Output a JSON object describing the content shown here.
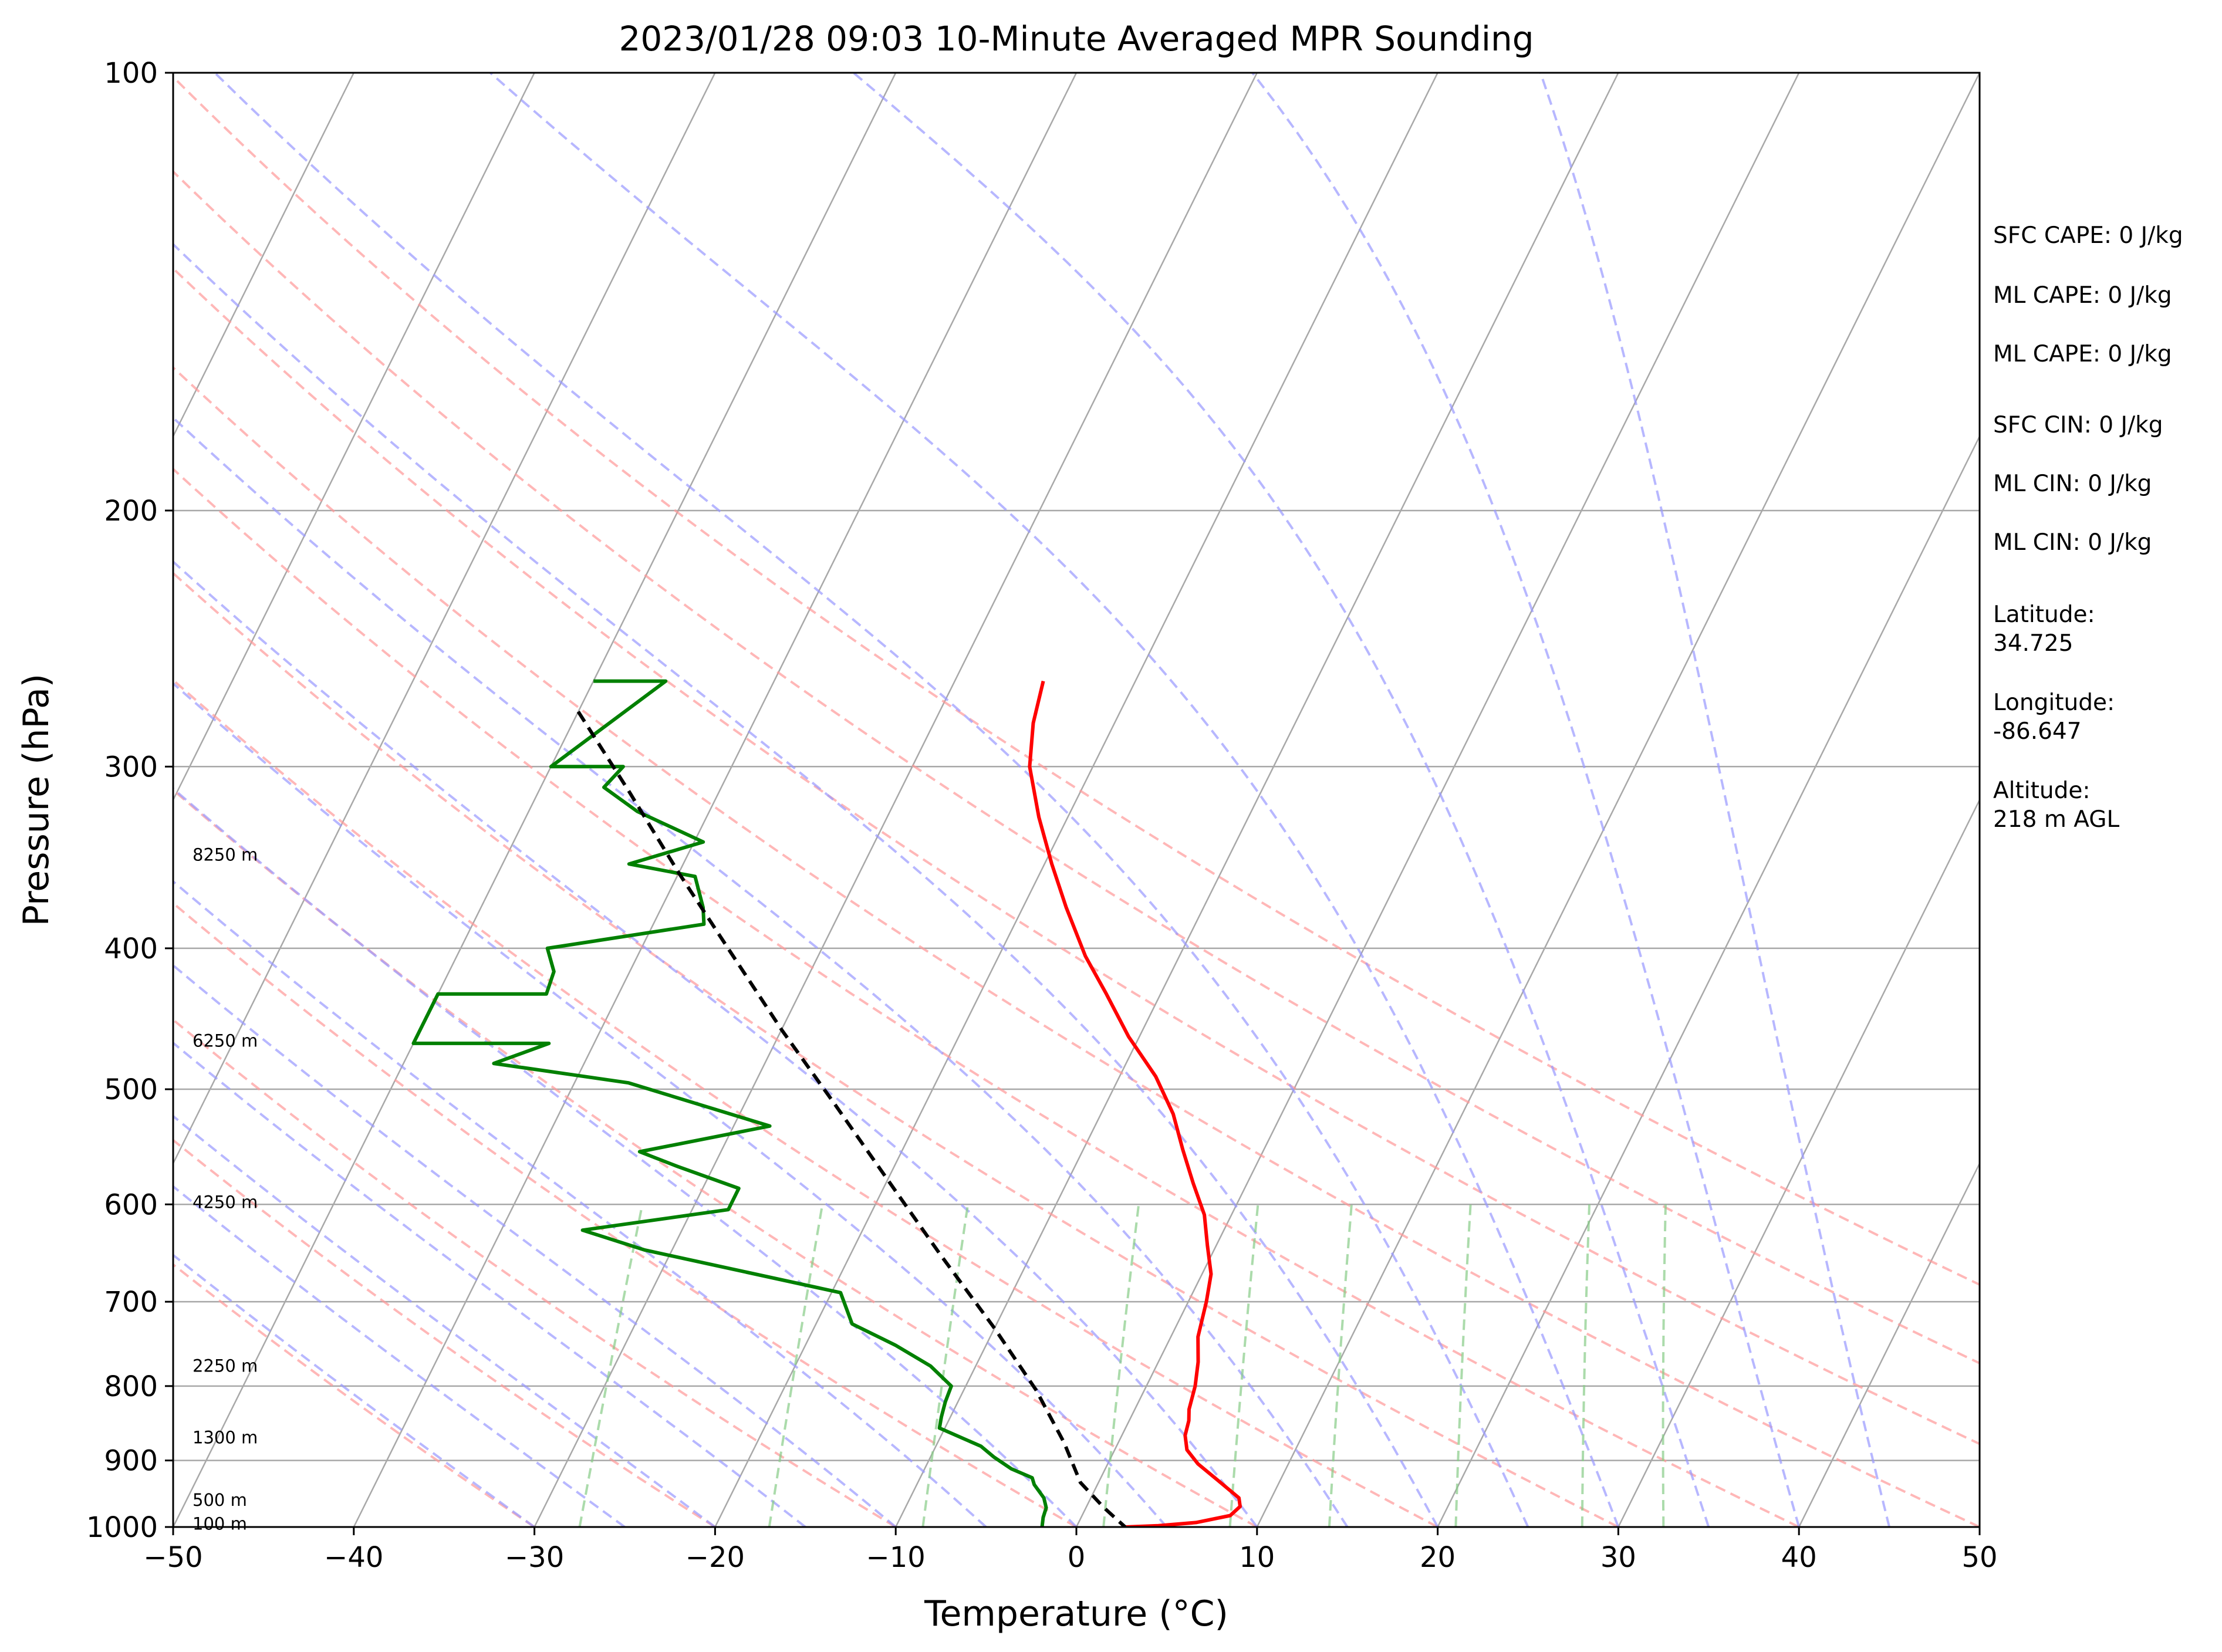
{
  "chart_data": {
    "type": "skew-t",
    "title": "2023/01/28 09:03 10-Minute Averaged MPR Sounding",
    "xlabel": "Temperature (°C)",
    "ylabel": "Pressure (hPa)",
    "xlim": [
      -50,
      50
    ],
    "ylim": [
      1000,
      100
    ],
    "y_scale": "log",
    "x_ticks": [
      "−50",
      "−40",
      "−30",
      "−20",
      "−10",
      "0",
      "10",
      "20",
      "30",
      "40",
      "50"
    ],
    "x_tick_values": [
      -50,
      -40,
      -30,
      -20,
      -10,
      0,
      10,
      20,
      30,
      40,
      50
    ],
    "y_ticks": [
      "100",
      "200",
      "300",
      "400",
      "500",
      "600",
      "700",
      "800",
      "900",
      "1000"
    ],
    "y_tick_values": [
      100,
      200,
      300,
      400,
      500,
      600,
      700,
      800,
      900,
      1000
    ],
    "grid": true,
    "skew_deg_per_decade": 40,
    "background_lines": {
      "isotherm_color": "#a8a8a8",
      "dry_adiabat_color": "#ff9999",
      "moist_adiabat_color": "#9999ff",
      "mixing_ratio_color": "#88cc88",
      "dry_adiabat_theta_C": [
        -30,
        -20,
        -10,
        0,
        10,
        20,
        30,
        40,
        50,
        60,
        70,
        80
      ],
      "moist_adiabat_base_C": [
        -30,
        -25,
        -20,
        -15,
        -10,
        -5,
        0,
        5,
        10,
        15,
        20,
        25,
        30,
        35,
        40,
        45
      ],
      "mixing_ratio_surface_temps_C": [
        -27.5,
        -17,
        -8.5,
        1.5,
        8.5,
        14,
        21,
        28,
        32.5
      ]
    },
    "series": [
      {
        "color": "#ff0000",
        "points": [
          [
            -25.1,
            262
          ],
          [
            -24.5,
            280
          ],
          [
            -23.5,
            300
          ],
          [
            -21.6,
            325
          ],
          [
            -19.6,
            350
          ],
          [
            -17.6,
            375
          ],
          [
            -15.2,
            405
          ],
          [
            -13,
            430
          ],
          [
            -10.6,
            460
          ],
          [
            -8,
            490
          ],
          [
            -6,
            520
          ],
          [
            -4.5,
            550
          ],
          [
            -3,
            580
          ],
          [
            -1.5,
            610
          ],
          [
            -0.5,
            640
          ],
          [
            0.5,
            670
          ],
          [
            1,
            700
          ],
          [
            1.5,
            740
          ],
          [
            2.2,
            770
          ],
          [
            2.7,
            800
          ],
          [
            3,
            830
          ],
          [
            3.3,
            845
          ],
          [
            3.5,
            865
          ],
          [
            4,
            885
          ],
          [
            5,
            905
          ],
          [
            6.5,
            928
          ],
          [
            8.2,
            955
          ],
          [
            8.5,
            968
          ],
          [
            8.2,
            982
          ],
          [
            6.5,
            993
          ],
          [
            4.5,
            998
          ],
          [
            2.7,
            1000
          ]
        ]
      },
      {
        "color": "#008000",
        "points": [
          [
            -50,
            262
          ],
          [
            -46,
            262
          ],
          [
            -50,
            300
          ],
          [
            -46,
            300
          ],
          [
            -46.5,
            310
          ],
          [
            -44,
            322
          ],
          [
            -39.5,
            338
          ],
          [
            -43,
            350
          ],
          [
            -39,
            357
          ],
          [
            -37.7,
            375
          ],
          [
            -37.2,
            385
          ],
          [
            -45.2,
            400
          ],
          [
            -44.2,
            415
          ],
          [
            -44,
            430
          ],
          [
            -50,
            430
          ],
          [
            -50,
            465
          ],
          [
            -42.5,
            465
          ],
          [
            -45,
            480
          ],
          [
            -37,
            495
          ],
          [
            -28,
            530
          ],
          [
            -34.5,
            552
          ],
          [
            -32,
            565
          ],
          [
            -28,
            585
          ],
          [
            -28,
            605
          ],
          [
            -35.5,
            625
          ],
          [
            -31.5,
            645
          ],
          [
            -19.5,
            690
          ],
          [
            -18,
            725
          ],
          [
            -15,
            750
          ],
          [
            -12.5,
            775
          ],
          [
            -10.8,
            800
          ],
          [
            -10.7,
            820
          ],
          [
            -10.5,
            840
          ],
          [
            -10.3,
            855
          ],
          [
            -7.5,
            880
          ],
          [
            -6.5,
            895
          ],
          [
            -5.2,
            912
          ],
          [
            -3.8,
            925
          ],
          [
            -3.5,
            935
          ],
          [
            -2.6,
            955
          ],
          [
            -2.2,
            970
          ],
          [
            -2.1,
            985
          ],
          [
            -1.9,
            1000
          ]
        ]
      },
      {
        "color": "#000000",
        "points": [
          [
            -50,
            275
          ],
          [
            -45,
            312
          ],
          [
            -40,
            355
          ],
          [
            -35,
            402
          ],
          [
            -30,
            455
          ],
          [
            -25,
            512
          ],
          [
            -20,
            577
          ],
          [
            -15,
            650
          ],
          [
            -10,
            730
          ],
          [
            -6,
            805
          ],
          [
            -3,
            875
          ],
          [
            -1,
            932
          ],
          [
            1,
            970
          ],
          [
            2.7,
            1000
          ]
        ]
      }
    ],
    "height_labels": [
      {
        "text": "8250 m",
        "p": 345
      },
      {
        "text": "6250 m",
        "p": 463
      },
      {
        "text": "4250 m",
        "p": 598
      },
      {
        "text": "2250 m",
        "p": 775
      },
      {
        "text": "1300 m",
        "p": 868
      },
      {
        "text": "500 m",
        "p": 958
      },
      {
        "text": "100 m",
        "p": 995
      }
    ]
  },
  "side_panel": {
    "sfc_cape": "SFC CAPE: 0 J/kg",
    "ml_cape_1": "ML CAPE: 0 J/kg",
    "ml_cape_2": "ML CAPE: 0 J/kg",
    "sfc_cin": "SFC CIN: 0 J/kg",
    "ml_cin_1": "ML CIN: 0 J/kg",
    "ml_cin_2": "ML CIN: 0 J/kg",
    "latitude_label": "Latitude:",
    "latitude_value": "34.725",
    "longitude_label": "Longitude:",
    "longitude_value": "-86.647",
    "altitude_label": "Altitude:",
    "altitude_value": "218 m AGL"
  }
}
